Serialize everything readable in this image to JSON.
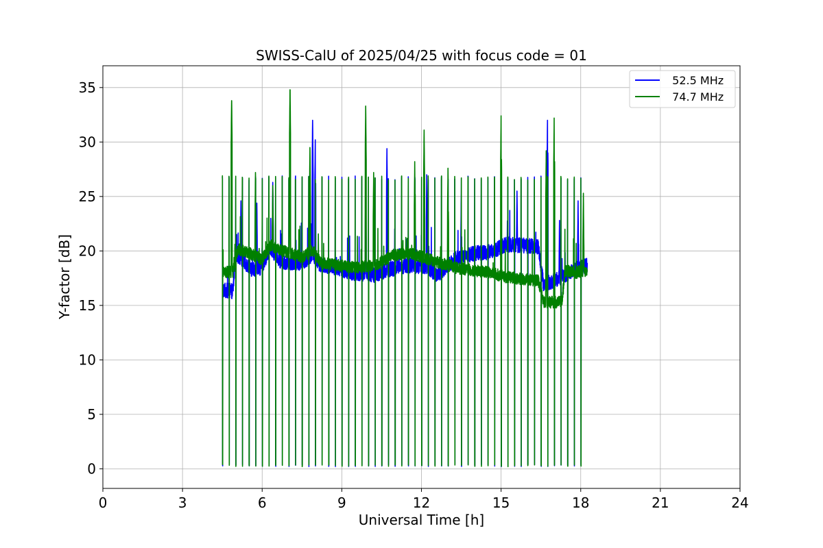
{
  "chart_data": {
    "type": "line",
    "title": "SWISS-CalU of 2025/04/25 with focus code = 01",
    "xlabel": "Universal Time [h]",
    "ylabel": "Y-factor [dB]",
    "xlim": [
      0,
      24
    ],
    "ylim": [
      -1.8,
      37
    ],
    "xticks": [
      0,
      3,
      6,
      9,
      12,
      15,
      18,
      21,
      24
    ],
    "xtick_labels": [
      "0",
      "3",
      "6",
      "9",
      "12",
      "15",
      "18",
      "21",
      "24"
    ],
    "yticks": [
      0,
      5,
      10,
      15,
      20,
      25,
      30,
      35
    ],
    "ytick_labels": [
      "0",
      "5",
      "10",
      "15",
      "20",
      "25",
      "30",
      "35"
    ],
    "grid": true,
    "legend_position": "top-right",
    "time_range": [
      4.5,
      18.25
    ],
    "calibration_interval_h": 0.25,
    "calibration_high_db": 26.7,
    "calibration_low_db": 0.2,
    "series": [
      {
        "name": "52.5 MHz",
        "legend_label": "  52.5 MHz",
        "color": "#0000ff",
        "baseline": [
          [
            4.5,
            16.4
          ],
          [
            4.9,
            16.3
          ],
          [
            5.0,
            19.8
          ],
          [
            5.6,
            18.3
          ],
          [
            6.0,
            18.5
          ],
          [
            6.3,
            20.3
          ],
          [
            6.7,
            19.0
          ],
          [
            7.5,
            18.9
          ],
          [
            7.9,
            19.7
          ],
          [
            8.2,
            18.7
          ],
          [
            8.8,
            18.4
          ],
          [
            9.4,
            18.0
          ],
          [
            10.2,
            17.8
          ],
          [
            10.8,
            18.3
          ],
          [
            11.5,
            18.7
          ],
          [
            12.2,
            18.5
          ],
          [
            12.6,
            17.8
          ],
          [
            13.3,
            19.3
          ],
          [
            14.0,
            19.8
          ],
          [
            14.6,
            19.9
          ],
          [
            15.2,
            20.6
          ],
          [
            15.8,
            20.5
          ],
          [
            16.4,
            20.4
          ],
          [
            16.6,
            16.9
          ],
          [
            17.2,
            17.5
          ],
          [
            17.8,
            18.3
          ],
          [
            18.25,
            18.7
          ]
        ],
        "noise_db": 0.7,
        "spikes": [
          [
            5.2,
            24.6
          ],
          [
            5.8,
            24.4
          ],
          [
            6.4,
            26.3
          ],
          [
            7.9,
            32.0
          ],
          [
            8.0,
            30.2
          ],
          [
            9.9,
            26.0
          ],
          [
            10.7,
            29.4
          ],
          [
            12.2,
            27.0
          ],
          [
            13.5,
            25.3
          ],
          [
            15.6,
            25.5
          ],
          [
            16.75,
            32.5
          ],
          [
            17.2,
            22.8
          ],
          [
            17.9,
            24.6
          ]
        ]
      },
      {
        "name": "74.7 MHz",
        "legend_label": "  74.7 MHz",
        "color": "#008000",
        "baseline": [
          [
            4.5,
            18.0
          ],
          [
            4.9,
            18.1
          ],
          [
            5.1,
            20.2
          ],
          [
            5.6,
            19.7
          ],
          [
            6.0,
            19.2
          ],
          [
            6.3,
            20.5
          ],
          [
            6.8,
            20.0
          ],
          [
            7.5,
            19.4
          ],
          [
            7.9,
            20.1
          ],
          [
            8.2,
            18.9
          ],
          [
            8.8,
            18.7
          ],
          [
            9.5,
            18.5
          ],
          [
            10.2,
            18.6
          ],
          [
            10.9,
            19.6
          ],
          [
            11.6,
            19.8
          ],
          [
            12.2,
            19.3
          ],
          [
            12.7,
            18.9
          ],
          [
            13.4,
            18.4
          ],
          [
            14.0,
            18.2
          ],
          [
            14.6,
            18.0
          ],
          [
            15.2,
            17.6
          ],
          [
            15.8,
            17.4
          ],
          [
            16.4,
            17.3
          ],
          [
            16.6,
            15.3
          ],
          [
            17.3,
            15.3
          ],
          [
            17.4,
            18.2
          ],
          [
            17.8,
            18.0
          ],
          [
            18.25,
            18.2
          ]
        ],
        "noise_db": 0.55,
        "spikes": [
          [
            4.85,
            34.3
          ],
          [
            5.75,
            27.7
          ],
          [
            6.4,
            26.0
          ],
          [
            7.05,
            35.3
          ],
          [
            7.8,
            29.5
          ],
          [
            9.9,
            33.3
          ],
          [
            10.2,
            27.2
          ],
          [
            11.75,
            28.7
          ],
          [
            12.1,
            31.1
          ],
          [
            13.0,
            27.6
          ],
          [
            15.0,
            32.4
          ],
          [
            16.7,
            29.2
          ],
          [
            17.0,
            32.2
          ],
          [
            18.1,
            25.3
          ]
        ]
      }
    ]
  }
}
